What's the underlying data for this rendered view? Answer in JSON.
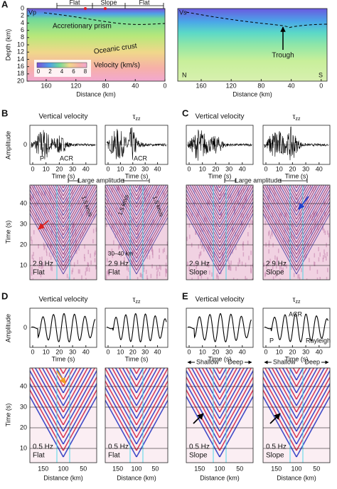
{
  "panel_a": {
    "label": "A",
    "vp": "Vp",
    "vs": "Vs",
    "segments": [
      "Flat",
      "Slope",
      "Flat"
    ],
    "prism": "Accretionary prism",
    "crust": "Oceanic crust",
    "colorbar_label": "Velocity (km/s)",
    "colorbar_ticks": [
      "0",
      "2",
      "4",
      "6",
      "8"
    ],
    "depth_label": "Depth (km)",
    "depth_ticks": [
      "0",
      "2",
      "4",
      "6",
      "8",
      "10",
      "12",
      "14",
      "16",
      "18",
      "20"
    ],
    "distance_label": "Distance (km)",
    "distance_ticks": [
      "160",
      "120",
      "80",
      "40",
      "0"
    ],
    "trough": "Trough",
    "north": "N",
    "south": "S"
  },
  "panels": [
    {
      "label": "B",
      "amplitude_label": "Amplitude",
      "amplitude_ticks": [
        "0"
      ],
      "time_label": "Time (s)",
      "time_ticks": [
        "0",
        "10",
        "20",
        "30",
        "40"
      ],
      "large_amplitude": "Large amplitude",
      "gather_label": "Time (s)",
      "gather_ticks": [
        "10",
        "20",
        "30",
        "40"
      ],
      "waves": [
        {
          "title": "Vertical velocity",
          "notes": [
            "P",
            "ACR"
          ]
        },
        {
          "title": {
            "symbol": "τ",
            "sub": "zz"
          },
          "notes": [
            "ACR"
          ]
        }
      ],
      "gathers": [
        {
          "freq": "2.9 Hz",
          "geometry": "Flat",
          "notes": [
            "1.5 km/s"
          ]
        },
        {
          "freq": "2.9 Hz",
          "geometry": "Flat",
          "notes": [
            "1.5 km/s",
            "1.5 km/s",
            "30–40 km"
          ]
        }
      ]
    },
    {
      "label": "C",
      "time_label": "Time (s)",
      "time_ticks": [
        "0",
        "10",
        "20",
        "30",
        "40"
      ],
      "large_amplitude": "Large amplitude",
      "waves": [
        {
          "title": "Vertical velocity",
          "notes": []
        },
        {
          "title": {
            "symbol": "τ",
            "sub": "zz"
          },
          "notes": []
        }
      ],
      "gathers": [
        {
          "freq": "2.9 Hz",
          "geometry": "Slope",
          "notes": []
        },
        {
          "freq": "2.9 Hz",
          "geometry": "Slope",
          "notes": []
        }
      ]
    },
    {
      "label": "D",
      "amplitude_label": "Amplitude",
      "amplitude_ticks": [
        "0"
      ],
      "time_label": "Time (s)",
      "time_ticks": [
        "0",
        "10",
        "20",
        "30",
        "40"
      ],
      "gather_label": "Time (s)",
      "gather_ticks": [
        "10",
        "20",
        "30",
        "40"
      ],
      "distance_label": "Distance (km)",
      "distance_ticks": [
        "150",
        "100",
        "50"
      ],
      "waves": [
        {
          "title": "Vertical velocity",
          "notes": []
        },
        {
          "title": {
            "symbol": "τ",
            "sub": "zz"
          },
          "notes": []
        }
      ],
      "gathers": [
        {
          "freq": "0.5 Hz",
          "geometry": "Flat",
          "notes": []
        },
        {
          "freq": "0.5 Hz",
          "geometry": "Flat",
          "notes": []
        }
      ]
    },
    {
      "label": "E",
      "time_label": "Time (s)",
      "time_ticks": [
        "0",
        "10",
        "20",
        "30",
        "40"
      ],
      "shallow": "Shallow",
      "deep": "Deep",
      "distance_label": "Distance (km)",
      "distance_ticks": [
        "150",
        "100",
        "50"
      ],
      "waves": [
        {
          "title": "Vertical velocity",
          "notes": []
        },
        {
          "title": {
            "symbol": "τ",
            "sub": "zz"
          },
          "notes": [
            "ACR",
            "P",
            "Rayleigh"
          ]
        }
      ],
      "gathers": [
        {
          "freq": "0.5 Hz",
          "geometry": "Slope",
          "notes": []
        },
        {
          "freq": "0.5 Hz",
          "geometry": "Slope",
          "notes": []
        }
      ]
    }
  ]
}
